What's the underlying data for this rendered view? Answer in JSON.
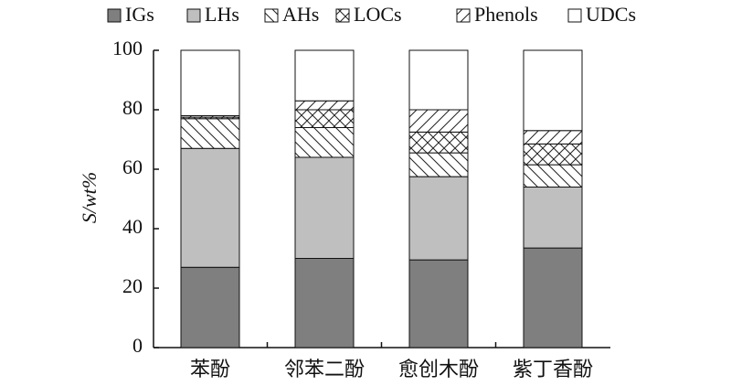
{
  "chart_data": {
    "type": "stacked_bar",
    "y_label": "S/wt%",
    "categories": [
      "苯酚",
      "邻苯二酚",
      "愈创木酚",
      "紫丁香酚"
    ],
    "series": [
      {
        "name": "IGs",
        "color": "#7f7f7f",
        "pattern": "solid",
        "values": [
          27,
          30,
          29.5,
          33.5
        ]
      },
      {
        "name": "LHs",
        "color": "#bfbfbf",
        "pattern": "solid",
        "values": [
          40,
          34,
          28,
          20.5
        ]
      },
      {
        "name": "AHs",
        "color": "#ffffff",
        "pattern": "backslash",
        "values": [
          10,
          10,
          8,
          7.5
        ]
      },
      {
        "name": "LOCs",
        "color": "#ffffff",
        "pattern": "cross",
        "values": [
          0.5,
          6,
          7,
          7
        ]
      },
      {
        "name": "Phenols",
        "color": "#ffffff",
        "pattern": "slash",
        "values": [
          0.5,
          3,
          7.5,
          4.5
        ]
      },
      {
        "name": "UDCs",
        "color": "#ffffff",
        "pattern": "solid",
        "values": [
          22,
          17,
          20,
          27
        ]
      }
    ],
    "ylim": [
      0,
      100
    ],
    "yticks": [
      0,
      20,
      40,
      60,
      80,
      100
    ],
    "legend": "top"
  }
}
